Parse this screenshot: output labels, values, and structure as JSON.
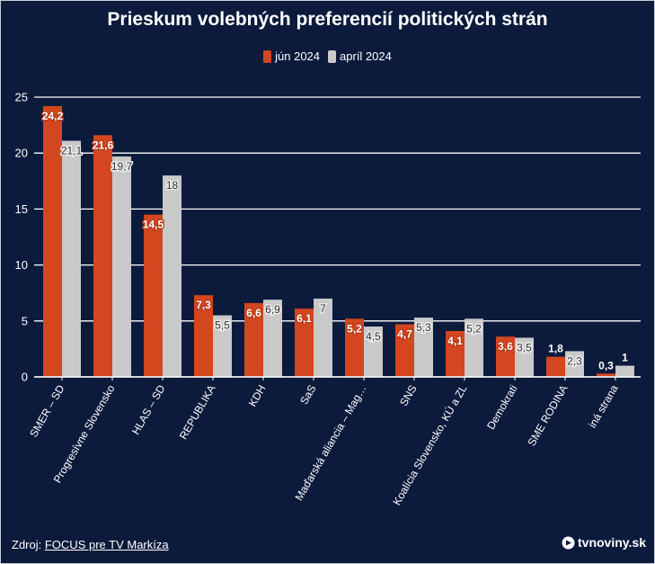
{
  "chart_data": {
    "type": "bar",
    "title": "Prieskum volebných preferencií politických strán",
    "categories": [
      "SMER – SD",
      "Progresívne Slovensko",
      "HLAS – SD",
      "REPUBLIKA",
      "KDH",
      "SaS",
      "Maďarská aliancia – Mag…",
      "SNS",
      "Koalícia Slovensko, KÚ a ZL",
      "Demokrati",
      "SME RODINA",
      "iná strana"
    ],
    "series": [
      {
        "name": "jún 2024",
        "color": "#d4461f",
        "values": [
          24.2,
          21.6,
          14.5,
          7.3,
          6.6,
          6.1,
          5.2,
          4.7,
          4.1,
          3.6,
          1.8,
          0.3
        ]
      },
      {
        "name": "apríl 2024",
        "color": "#c9c9c9",
        "values": [
          21.1,
          19.7,
          18,
          5.5,
          6.9,
          7,
          4.5,
          5.3,
          5.2,
          3.5,
          2.3,
          1
        ]
      }
    ],
    "ylim": [
      0,
      25
    ],
    "yticks": [
      0,
      5,
      10,
      15,
      20,
      25
    ],
    "grid": true,
    "legend": "top-center",
    "data_labels": true
  },
  "footer": {
    "source_label": "Zdroj:",
    "source_name": "FOCUS pre TV Markíza",
    "brand": "tvnoviny.sk",
    "brand_icon": "tvnoviny-logo-icon"
  },
  "colors": {
    "background": "#0c1a3c",
    "grid": "#ffffff",
    "text": "#ffffff"
  }
}
